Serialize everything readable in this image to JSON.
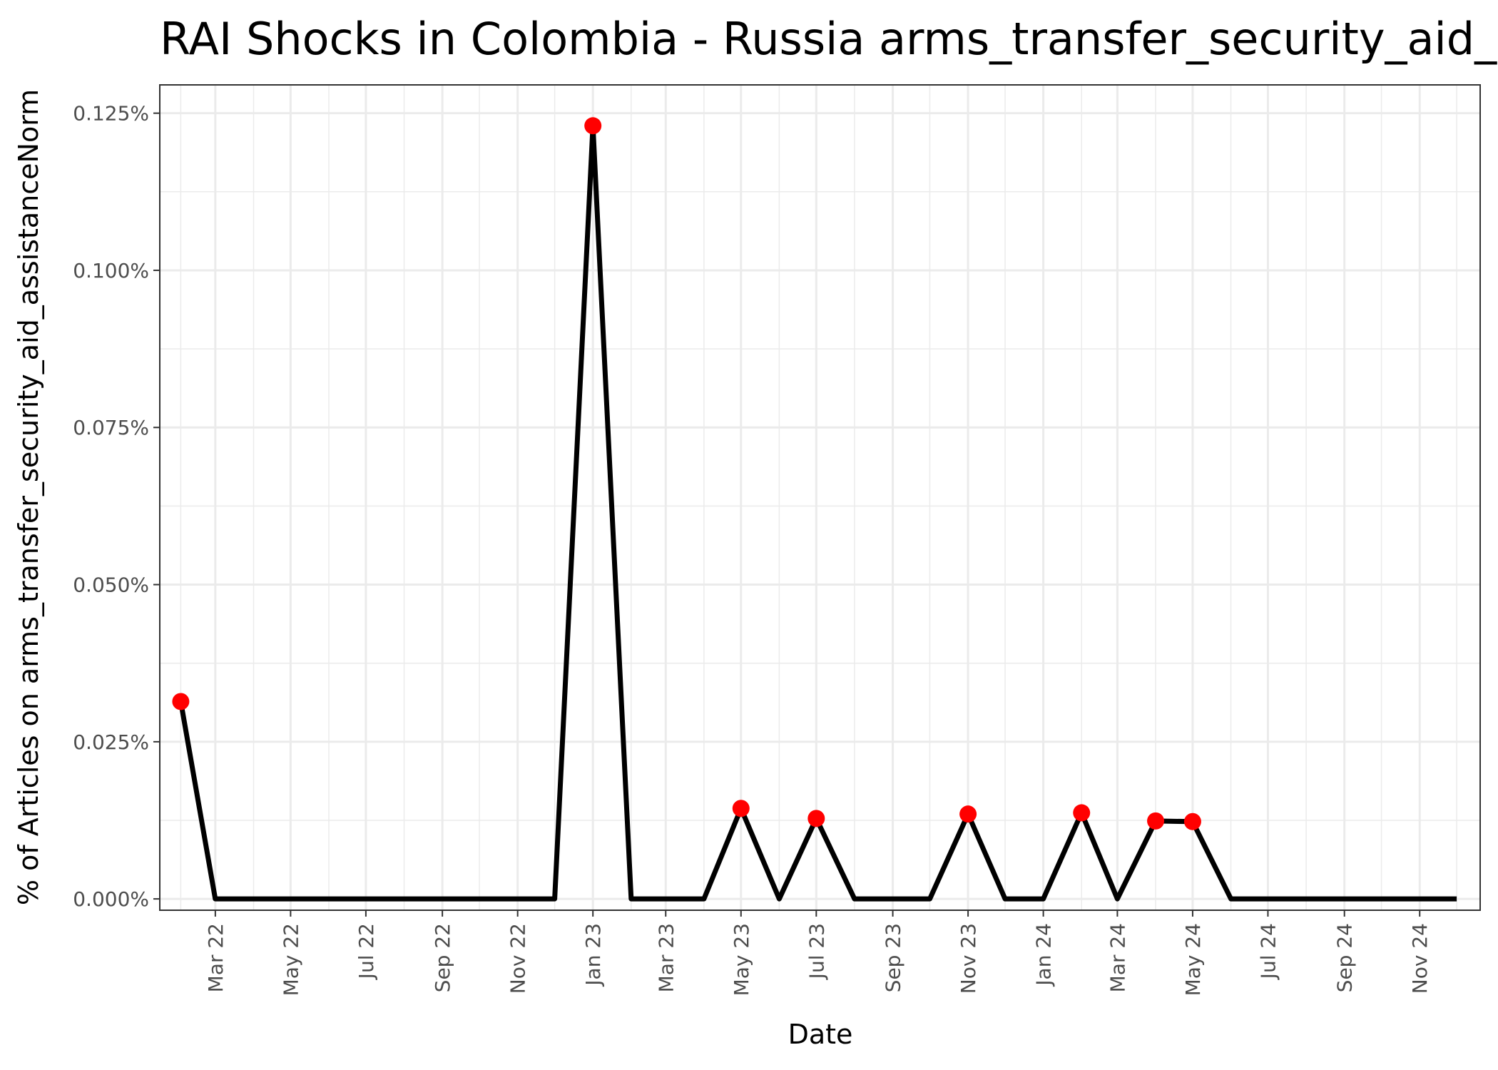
{
  "chart_data": {
    "type": "line",
    "title": "RAI Shocks in Colombia - Russia arms_transfer_security_aid_assistanceNorm",
    "xlabel": "Date",
    "ylabel": "% of Articles on arms_transfer_security_aid_assistanceNorm",
    "xlim": [
      "2022-01-15",
      "2024-12-20"
    ],
    "ylim": [
      -0.0018,
      0.1295
    ],
    "grid": true,
    "x_ticks": [
      {
        "date": "2022-03-01",
        "label": "Mar 22"
      },
      {
        "date": "2022-05-01",
        "label": "May 22"
      },
      {
        "date": "2022-07-01",
        "label": "Jul 22"
      },
      {
        "date": "2022-09-01",
        "label": "Sep 22"
      },
      {
        "date": "2022-11-01",
        "label": "Nov 22"
      },
      {
        "date": "2023-01-01",
        "label": "Jan 23"
      },
      {
        "date": "2023-03-01",
        "label": "Mar 23"
      },
      {
        "date": "2023-05-01",
        "label": "May 23"
      },
      {
        "date": "2023-07-01",
        "label": "Jul 23"
      },
      {
        "date": "2023-09-01",
        "label": "Sep 23"
      },
      {
        "date": "2023-11-01",
        "label": "Nov 23"
      },
      {
        "date": "2024-01-01",
        "label": "Jan 24"
      },
      {
        "date": "2024-03-01",
        "label": "Mar 24"
      },
      {
        "date": "2024-05-01",
        "label": "May 24"
      },
      {
        "date": "2024-07-01",
        "label": "Jul 24"
      },
      {
        "date": "2024-09-01",
        "label": "Sep 24"
      },
      {
        "date": "2024-11-01",
        "label": "Nov 24"
      }
    ],
    "y_ticks": [
      {
        "value": 0,
        "label": "0.000%"
      },
      {
        "value": 0.025,
        "label": "0.025%"
      },
      {
        "value": 0.05,
        "label": "0.050%"
      },
      {
        "value": 0.075,
        "label": "0.075%"
      },
      {
        "value": 0.1,
        "label": "0.100%"
      },
      {
        "value": 0.125,
        "label": "0.125%"
      }
    ],
    "line_color": "#000000",
    "shock_color": "#ff0000",
    "series": [
      {
        "values": [
          {
            "date": "2022-02-01",
            "value": 0.0314
          },
          {
            "date": "2022-03-01",
            "value": 0
          },
          {
            "date": "2022-04-01",
            "value": 0
          },
          {
            "date": "2022-05-01",
            "value": 0
          },
          {
            "date": "2022-06-01",
            "value": 0
          },
          {
            "date": "2022-07-01",
            "value": 0
          },
          {
            "date": "2022-08-01",
            "value": 0
          },
          {
            "date": "2022-09-01",
            "value": 0
          },
          {
            "date": "2022-10-01",
            "value": 0
          },
          {
            "date": "2022-11-01",
            "value": 0
          },
          {
            "date": "2022-12-01",
            "value": 0
          },
          {
            "date": "2023-01-01",
            "value": 0.123
          },
          {
            "date": "2023-02-01",
            "value": 0
          },
          {
            "date": "2023-03-01",
            "value": 0
          },
          {
            "date": "2023-04-01",
            "value": 0
          },
          {
            "date": "2023-05-01",
            "value": 0.0144
          },
          {
            "date": "2023-06-01",
            "value": 0
          },
          {
            "date": "2023-07-01",
            "value": 0.0128
          },
          {
            "date": "2023-08-01",
            "value": 0
          },
          {
            "date": "2023-09-01",
            "value": 0
          },
          {
            "date": "2023-10-01",
            "value": 0
          },
          {
            "date": "2023-11-01",
            "value": 0.0135
          },
          {
            "date": "2023-12-01",
            "value": 0
          },
          {
            "date": "2024-01-01",
            "value": 0
          },
          {
            "date": "2024-02-01",
            "value": 0.0137
          },
          {
            "date": "2024-03-01",
            "value": 0
          },
          {
            "date": "2024-04-01",
            "value": 0.0124
          },
          {
            "date": "2024-05-01",
            "value": 0.0123
          },
          {
            "date": "2024-06-01",
            "value": 0
          },
          {
            "date": "2024-07-01",
            "value": 0
          },
          {
            "date": "2024-08-01",
            "value": 0
          },
          {
            "date": "2024-09-01",
            "value": 0
          },
          {
            "date": "2024-10-01",
            "value": 0
          },
          {
            "date": "2024-11-01",
            "value": 0
          },
          {
            "date": "2024-12-01",
            "value": 0
          }
        ]
      }
    ],
    "shock_points": [
      {
        "date": "2022-02-01",
        "value": 0.0314
      },
      {
        "date": "2023-01-01",
        "value": 0.123
      },
      {
        "date": "2023-05-01",
        "value": 0.0144
      },
      {
        "date": "2023-07-01",
        "value": 0.0128
      },
      {
        "date": "2023-11-01",
        "value": 0.0135
      },
      {
        "date": "2024-02-01",
        "value": 0.0137
      },
      {
        "date": "2024-04-01",
        "value": 0.0124
      },
      {
        "date": "2024-05-01",
        "value": 0.0123
      }
    ]
  }
}
